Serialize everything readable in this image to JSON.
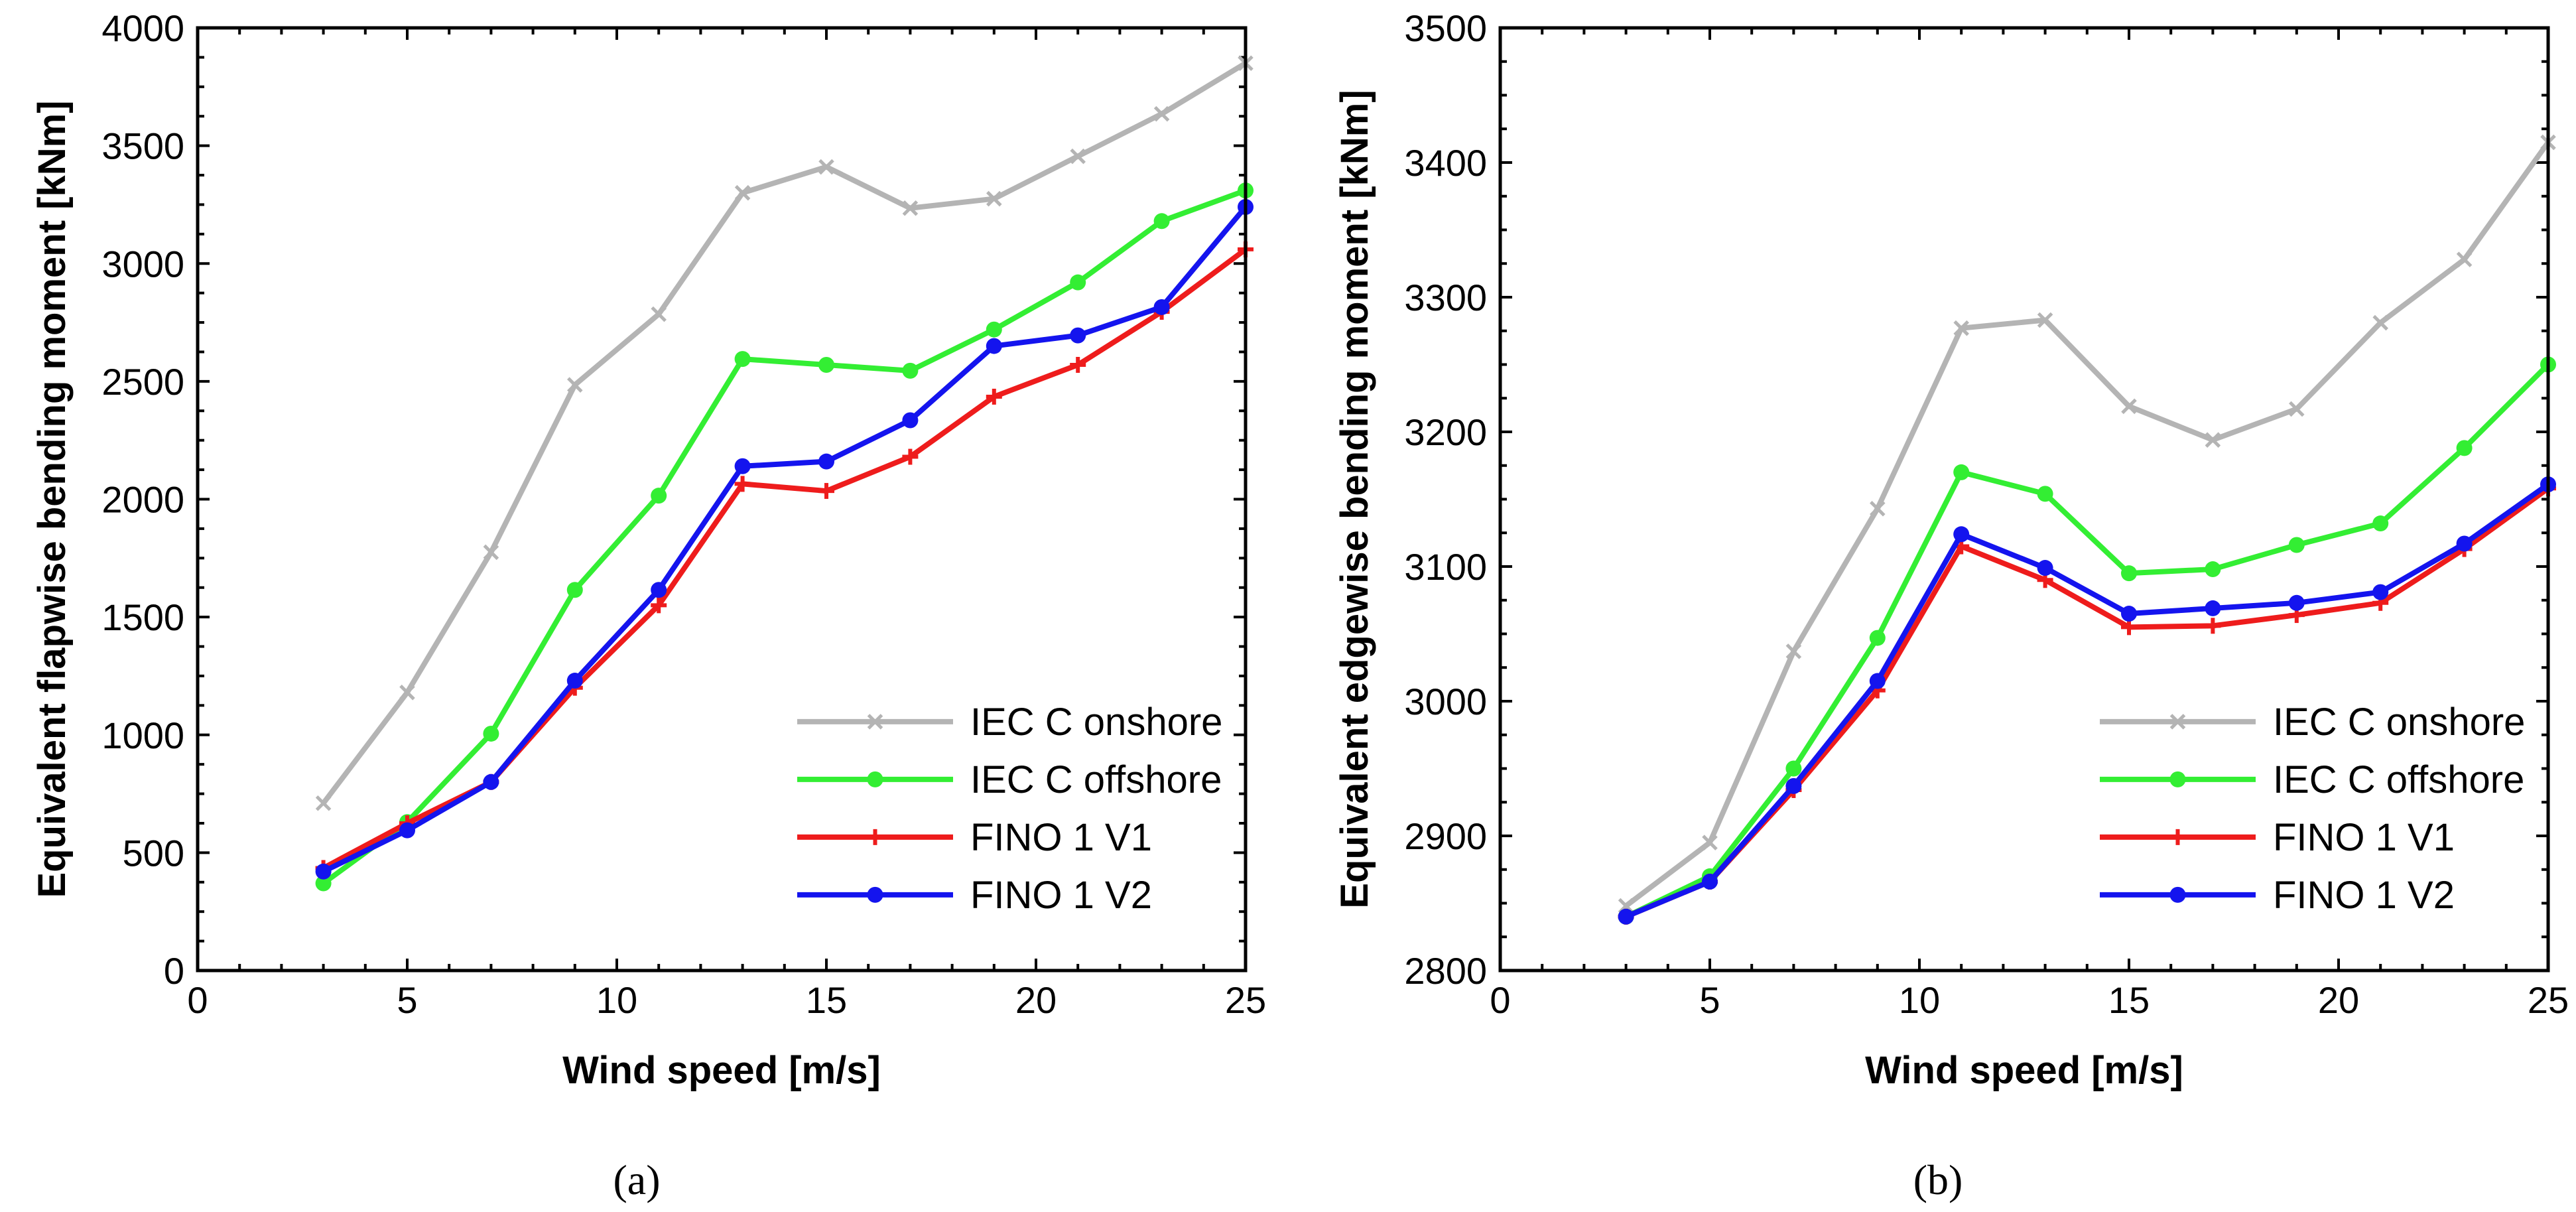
{
  "chart_data": [
    {
      "type": "line",
      "caption": "(a)",
      "xlabel": "Wind speed [m/s]",
      "ylabel": "Equivalent flapwise bending moment [kNm]",
      "xlim": [
        0,
        25
      ],
      "ylim": [
        0,
        4000
      ],
      "xticks": [
        0,
        5,
        10,
        15,
        20,
        25
      ],
      "yticks": [
        0,
        500,
        1000,
        1500,
        2000,
        2500,
        3000,
        3500,
        4000
      ],
      "x": [
        3,
        5,
        7,
        9,
        11,
        13,
        15,
        17,
        19,
        21,
        23,
        25
      ],
      "grid": false,
      "legend_position": "bottom-right",
      "series": [
        {
          "name": "IEC C onshore",
          "color": "#b4b4b4",
          "marker": "x",
          "values": [
            710,
            1180,
            1775,
            2485,
            2785,
            3300,
            3410,
            3235,
            3275,
            3455,
            3635,
            3850
          ]
        },
        {
          "name": "IEC C offshore",
          "color": "#33ee33",
          "marker": "dot",
          "values": [
            370,
            630,
            1005,
            1615,
            2015,
            2595,
            2570,
            2545,
            2720,
            2920,
            3180,
            3310
          ]
        },
        {
          "name": "FINO 1 V1",
          "color": "#ee1c1c",
          "marker": "plus",
          "values": [
            435,
            625,
            800,
            1200,
            1550,
            2065,
            2035,
            2180,
            2435,
            2570,
            2795,
            3060
          ]
        },
        {
          "name": "FINO 1 V2",
          "color": "#1414ee",
          "marker": "dot",
          "values": [
            420,
            595,
            800,
            1230,
            1615,
            2140,
            2160,
            2335,
            2650,
            2695,
            2815,
            3240
          ]
        }
      ]
    },
    {
      "type": "line",
      "caption": "(b)",
      "xlabel": "Wind speed [m/s]",
      "ylabel": "Equivalent edgewise bending moment [kNm]",
      "xlim": [
        0,
        25
      ],
      "ylim": [
        2800,
        3500
      ],
      "xticks": [
        0,
        5,
        10,
        15,
        20,
        25
      ],
      "yticks": [
        2800,
        2900,
        3000,
        3100,
        3200,
        3300,
        3400,
        3500
      ],
      "x": [
        3,
        5,
        7,
        9,
        11,
        13,
        15,
        17,
        19,
        21,
        23,
        25
      ],
      "grid": false,
      "legend_position": "bottom-right",
      "series": [
        {
          "name": "IEC C onshore",
          "color": "#b4b4b4",
          "marker": "x",
          "values": [
            2848,
            2895,
            3037,
            3143,
            3277,
            3283,
            3219,
            3194,
            3217,
            3281,
            3328,
            3415
          ]
        },
        {
          "name": "IEC C offshore",
          "color": "#33ee33",
          "marker": "dot",
          "values": [
            2840,
            2870,
            2950,
            3047,
            3170,
            3154,
            3095,
            3098,
            3116,
            3132,
            3188,
            3250
          ]
        },
        {
          "name": "FINO 1 V1",
          "color": "#ee1c1c",
          "marker": "plus",
          "values": [
            2840,
            2866,
            2934,
            3008,
            3115,
            3090,
            3055,
            3056,
            3064,
            3073,
            3113,
            3158
          ]
        },
        {
          "name": "FINO 1 V2",
          "color": "#1414ee",
          "marker": "dot",
          "values": [
            2840,
            2866,
            2937,
            3015,
            3124,
            3099,
            3065,
            3069,
            3073,
            3081,
            3117,
            3161
          ]
        }
      ]
    }
  ]
}
